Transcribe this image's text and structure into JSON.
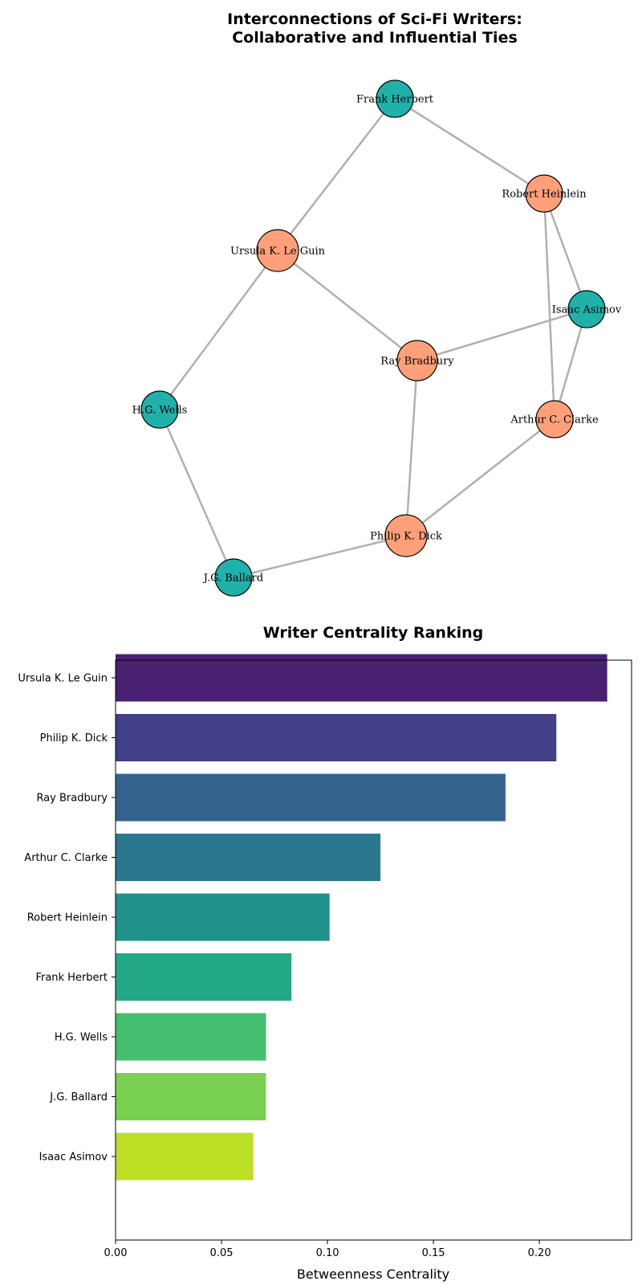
{
  "chart_data": [
    {
      "type": "network",
      "title_lines": [
        "Interconnections of Sci-Fi Writers:",
        "Collaborative and Influential Ties"
      ],
      "node_colors": {
        "teal": "#20b2aa",
        "salmon": "#ffa07a"
      },
      "edge_color": "#b0b0b0",
      "nodes": [
        {
          "id": "Frank Herbert",
          "group": "teal",
          "size": "small"
        },
        {
          "id": "Robert Heinlein",
          "group": "salmon",
          "size": "small"
        },
        {
          "id": "Ursula K. Le Guin",
          "group": "salmon",
          "size": "large"
        },
        {
          "id": "Isaac Asimov",
          "group": "teal",
          "size": "small"
        },
        {
          "id": "Ray Bradbury",
          "group": "salmon",
          "size": "medium"
        },
        {
          "id": "H.G. Wells",
          "group": "teal",
          "size": "small"
        },
        {
          "id": "Arthur C. Clarke",
          "group": "salmon",
          "size": "small"
        },
        {
          "id": "Philip K. Dick",
          "group": "salmon",
          "size": "large"
        },
        {
          "id": "J.G. Ballard",
          "group": "teal",
          "size": "small"
        }
      ],
      "edges": [
        [
          "Frank Herbert",
          "Ursula K. Le Guin"
        ],
        [
          "Frank Herbert",
          "Robert Heinlein"
        ],
        [
          "Robert Heinlein",
          "Isaac Asimov"
        ],
        [
          "Robert Heinlein",
          "Arthur C. Clarke"
        ],
        [
          "Ursula K. Le Guin",
          "Ray Bradbury"
        ],
        [
          "Ursula K. Le Guin",
          "H.G. Wells"
        ],
        [
          "Isaac Asimov",
          "Ray Bradbury"
        ],
        [
          "Isaac Asimov",
          "Arthur C. Clarke"
        ],
        [
          "Ray Bradbury",
          "Philip K. Dick"
        ],
        [
          "H.G. Wells",
          "J.G. Ballard"
        ],
        [
          "Arthur C. Clarke",
          "Philip K. Dick"
        ],
        [
          "Philip K. Dick",
          "J.G. Ballard"
        ]
      ]
    },
    {
      "type": "bar",
      "orientation": "horizontal",
      "title": "Writer Centrality Ranking",
      "xlabel": "Betweenness Centrality",
      "ylabel": "",
      "xlim": [
        0,
        0.2435
      ],
      "xticks": [
        0.0,
        0.05,
        0.1,
        0.15,
        0.2
      ],
      "xtick_labels": [
        "0.00",
        "0.05",
        "0.10",
        "0.15",
        "0.20"
      ],
      "categories": [
        "Ursula K. Le Guin",
        "Philip K. Dick",
        "Ray Bradbury",
        "Arthur C. Clarke",
        "Robert Heinlein",
        "Frank Herbert",
        "H.G. Wells",
        "J.G. Ballard",
        "Isaac Asimov"
      ],
      "values": [
        0.232,
        0.208,
        0.184,
        0.125,
        0.101,
        0.083,
        0.071,
        0.071,
        0.065
      ],
      "colors": [
        "#482173",
        "#424086",
        "#33638d",
        "#2a788e",
        "#21918c",
        "#22a884",
        "#44bf70",
        "#7ad151",
        "#bddf26"
      ]
    }
  ]
}
